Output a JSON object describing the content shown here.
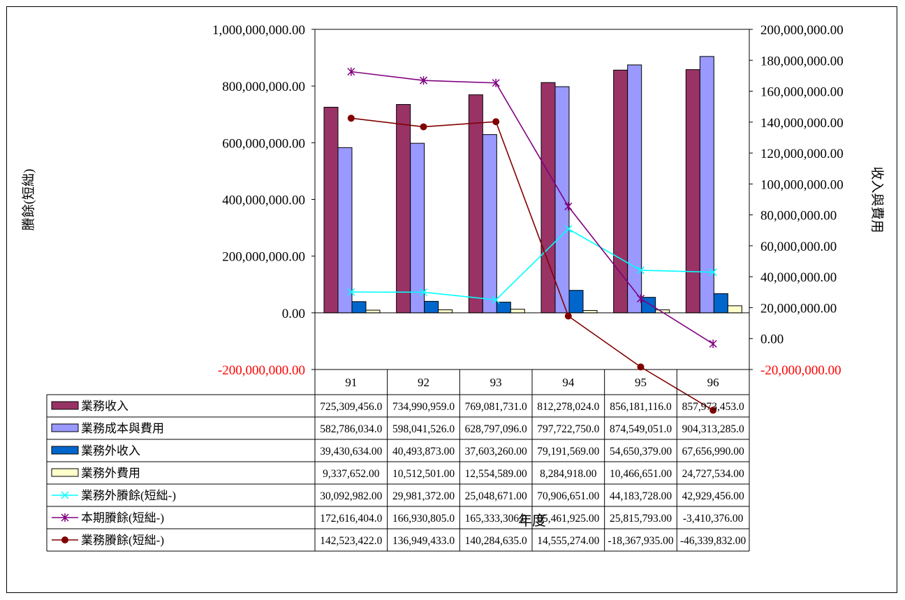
{
  "chart_data": {
    "type": "bar",
    "title": "",
    "xlabel": "年度",
    "ylabel_left": "賸餘(短絀)",
    "ylabel_right": "收入與費用",
    "ylim_left": [
      -200000000,
      1000000000
    ],
    "ylim_right": [
      -20000000,
      200000000
    ],
    "left_ticks": [
      "1,000,000,000.00",
      "800,000,000.00",
      "600,000,000.00",
      "400,000,000.00",
      "200,000,000.00",
      "0.00",
      "-200,000,000.00"
    ],
    "right_ticks": [
      "200,000,000.00",
      "180,000,000.00",
      "160,000,000.00",
      "140,000,000.00",
      "120,000,000.00",
      "100,000,000.00",
      "80,000,000.00",
      "60,000,000.00",
      "40,000,000.00",
      "20,000,000.00",
      "0.00",
      "-20,000,000.00"
    ],
    "negative_tick_color": "#ff0000",
    "categories": [
      "91",
      "92",
      "93",
      "94",
      "95",
      "96"
    ],
    "grid": false,
    "legend": "data-table",
    "series": [
      {
        "name": "業務收入",
        "kind": "bar",
        "axis": "left",
        "color": "#993366",
        "values": [
          725309456,
          734990959,
          769081731,
          812278024,
          856181116,
          857973453
        ],
        "labels": [
          "725,309,456.0",
          "734,990,959.0",
          "769,081,731.0",
          "812,278,024.0",
          "856,181,116.0",
          "857,973,453.0"
        ]
      },
      {
        "name": "業務成本與費用",
        "kind": "bar",
        "axis": "left",
        "color": "#9999ff",
        "values": [
          582786034,
          598041526,
          628797096,
          797722750,
          874549051,
          904313285
        ],
        "labels": [
          "582,786,034.0",
          "598,041,526.0",
          "628,797,096.0",
          "797,722,750.0",
          "874,549,051.0",
          "904,313,285.0"
        ]
      },
      {
        "name": "業務外收入",
        "kind": "bar",
        "axis": "left",
        "color": "#0066cc",
        "values": [
          39430634,
          40493873,
          37603260,
          79191569,
          54650379,
          67656990
        ],
        "labels": [
          "39,430,634.00",
          "40,493,873.00",
          "37,603,260.00",
          "79,191,569.00",
          "54,650,379.00",
          "67,656,990.00"
        ]
      },
      {
        "name": "業務外費用",
        "kind": "bar",
        "axis": "left",
        "color": "#ffffcc",
        "values": [
          9337652,
          10512501,
          12554589,
          8284918,
          10466651,
          24727534
        ],
        "labels": [
          "9,337,652.00",
          "10,512,501.00",
          "12,554,589.00",
          "8,284,918.00",
          "10,466,651.00",
          "24,727,534.00"
        ]
      },
      {
        "name": "業務外賸餘(短絀-)",
        "kind": "line",
        "axis": "right",
        "color": "#00ffff",
        "marker": "x",
        "values": [
          30092982,
          29981372,
          25048671,
          70906651,
          44183728,
          42929456
        ],
        "labels": [
          "30,092,982.00",
          "29,981,372.00",
          "25,048,671.00",
          "70,906,651.00",
          "44,183,728.00",
          "42,929,456.00"
        ]
      },
      {
        "name": "本期賸餘(短絀-)",
        "kind": "line",
        "axis": "right",
        "color": "#800080",
        "marker": "star",
        "values": [
          172616404,
          166930805,
          165333306,
          85461925,
          25815793,
          -3410376
        ],
        "labels": [
          "172,616,404.0",
          "166,930,805.0",
          "165,333,306.0",
          "85,461,925.00",
          "25,815,793.00",
          "-3,410,376.00"
        ]
      },
      {
        "name": "業務賸餘(短絀-)",
        "kind": "line",
        "axis": "right",
        "color": "#800000",
        "marker": "dot",
        "values": [
          142523422,
          136949433,
          140284635,
          14555274,
          -18367935,
          -46339832
        ],
        "labels": [
          "142,523,422.0",
          "136,949,433.0",
          "140,284,635.0",
          "14,555,274.00",
          "-18,367,935.00",
          "-46,339,832.00"
        ]
      }
    ]
  }
}
